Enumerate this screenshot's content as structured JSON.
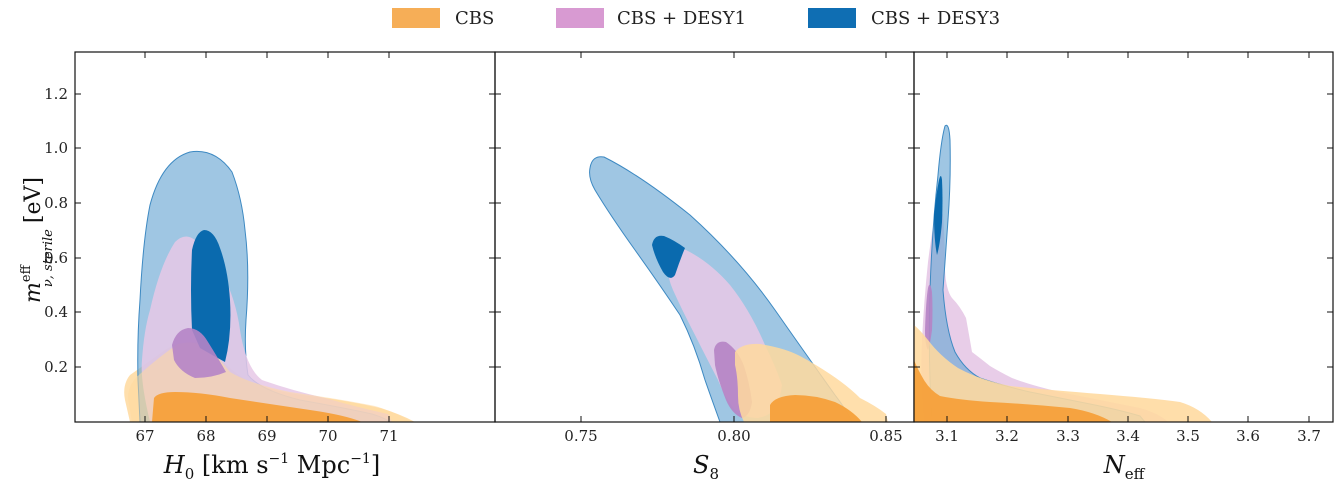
{
  "chart_data": {
    "type": "contour",
    "legend": {
      "placement": "top-center",
      "entries": [
        {
          "label": "CBS",
          "color": "#F5A03A"
        },
        {
          "label": "CBS + DESY1",
          "color": "#D89AD2"
        },
        {
          "label": "CBS + DESY3",
          "color": "#1F77B4"
        }
      ]
    },
    "ylabel": "m_{ν, sterile}^{eff} [eV]",
    "ylabel_parts": {
      "base": "m",
      "sup": "eff",
      "sub": "ν, sterile",
      "unit": "[eV]"
    },
    "ylim": [
      0,
      1.35
    ],
    "yticks": [
      "0.2",
      "0.4",
      "0.6",
      "0.8",
      "1.0",
      "1.2"
    ],
    "panels": [
      {
        "xlabel": "H0 [km s−1 Mpc−1]",
        "xlabel_parts": {
          "base": "H",
          "sub": "0",
          "rest1": " [km s",
          "sup1": "−1",
          "rest2": " Mpc",
          "sup2": "−1",
          "rest3": "]"
        },
        "xlim": [
          66.0,
          71.8
        ],
        "xticks": [
          "67",
          "68",
          "69",
          "70",
          "71"
        ],
        "series": [
          {
            "name": "CBS",
            "color": "#F5A03A",
            "contour_1sigma": [
              [
                67.1,
                0
              ],
              [
                67.1,
                0.1
              ],
              [
                67.5,
                0.12
              ],
              [
                68.0,
                0.1
              ],
              [
                69.0,
                0.07
              ],
              [
                70.0,
                0.03
              ],
              [
                70.4,
                0
              ]
            ],
            "contour_2sigma": [
              [
                66.7,
                0.02
              ],
              [
                66.7,
                0.12
              ],
              [
                67.0,
                0.25
              ],
              [
                67.4,
                0.3
              ],
              [
                68.0,
                0.28
              ],
              [
                68.5,
                0.15
              ],
              [
                69.5,
                0.1
              ],
              [
                70.5,
                0.05
              ],
              [
                71.0,
                0
              ]
            ]
          },
          {
            "name": "CBS + DESY1",
            "color": "#D89AD2",
            "contour_1sigma": [
              [
                67.4,
                0.2
              ],
              [
                67.6,
                0.33
              ],
              [
                67.9,
                0.3
              ],
              [
                68.2,
                0.2
              ]
            ],
            "contour_2sigma": [
              [
                66.9,
                0.18
              ],
              [
                67.0,
                0.4
              ],
              [
                67.4,
                0.63
              ],
              [
                67.7,
                0.68
              ],
              [
                68.0,
                0.55
              ],
              [
                68.5,
                0.25
              ],
              [
                69.5,
                0.1
              ],
              [
                70.5,
                0
              ]
            ]
          },
          {
            "name": "CBS + DESY3",
            "color": "#1F77B4",
            "contour_1sigma": [
              [
                67.6,
                0.4
              ],
              [
                67.7,
                0.62
              ],
              [
                67.9,
                0.69
              ],
              [
                68.2,
                0.6
              ],
              [
                68.1,
                0.35
              ]
            ],
            "contour_2sigma": [
              [
                66.9,
                0.2
              ],
              [
                67.0,
                0.75
              ],
              [
                67.4,
                0.97
              ],
              [
                67.8,
                0.99
              ],
              [
                68.2,
                0.8
              ],
              [
                68.5,
                0.2
              ],
              [
                70.3,
                0.03
              ],
              [
                70.6,
                0
              ]
            ]
          }
        ]
      },
      {
        "xlabel": "S8",
        "xlabel_parts": {
          "base": "S",
          "sub": "8"
        },
        "xlim": [
          0.7285,
          0.8555
        ],
        "xticks": [
          "0.75",
          "0.80",
          "0.85"
        ],
        "series": [
          {
            "name": "CBS",
            "color": "#F5A03A",
            "contour_1sigma": [
              [
                0.8,
                0
              ],
              [
                0.82,
                0.09
              ],
              [
                0.84,
                0.06
              ],
              [
                0.85,
                0
              ]
            ],
            "contour_2sigma": [
              [
                0.8,
                0.1
              ],
              [
                0.808,
                0.28
              ],
              [
                0.83,
                0.22
              ],
              [
                0.852,
                0.05
              ],
              [
                0.852,
                0
              ]
            ]
          },
          {
            "name": "CBS + DESY1",
            "color": "#D89AD2",
            "contour_1sigma": [
              [
                0.795,
                0.25
              ],
              [
                0.799,
                0.29
              ],
              [
                0.803,
                0.15
              ],
              [
                0.805,
                0.05
              ]
            ],
            "contour_2sigma": [
              [
                0.78,
                0.35
              ],
              [
                0.783,
                0.6
              ],
              [
                0.79,
                0.63
              ],
              [
                0.8,
                0.5
              ],
              [
                0.81,
                0.2
              ],
              [
                0.84,
                0.05
              ],
              [
                0.8,
                0.0
              ]
            ]
          },
          {
            "name": "CBS + DESY3",
            "color": "#1F77B4",
            "contour_1sigma": [
              [
                0.774,
                0.62
              ],
              [
                0.779,
                0.68
              ],
              [
                0.783,
                0.62
              ],
              [
                0.786,
                0.58
              ]
            ],
            "contour_2sigma": [
              [
                0.757,
                0.97
              ],
              [
                0.77,
                0.92
              ],
              [
                0.8,
                0.6
              ],
              [
                0.84,
                0.1
              ],
              [
                0.845,
                0.0
              ],
              [
                0.76,
                0.85
              ]
            ]
          }
        ]
      },
      {
        "xlabel": "Neff",
        "xlabel_parts": {
          "base": "N",
          "sub": "eff"
        },
        "xlim": [
          3.046,
          3.74
        ],
        "xticks": [
          "3.1",
          "3.2",
          "3.3",
          "3.4",
          "3.5",
          "3.6",
          "3.7"
        ],
        "series": [
          {
            "name": "CBS",
            "color": "#F5A03A",
            "contour_1sigma": [
              [
                3.046,
                0.2
              ],
              [
                3.06,
                0.08
              ],
              [
                3.2,
                0.05
              ],
              [
                3.35,
                0.03
              ],
              [
                3.4,
                0
              ]
            ],
            "contour_2sigma": [
              [
                3.046,
                0.35
              ],
              [
                3.08,
                0.18
              ],
              [
                3.2,
                0.1
              ],
              [
                3.35,
                0.1
              ],
              [
                3.48,
                0.07
              ],
              [
                3.54,
                0
              ]
            ]
          },
          {
            "name": "CBS + DESY1",
            "color": "#D89AD2",
            "contour_1sigma": [
              [
                3.06,
                0.5
              ],
              [
                3.07,
                0.52
              ],
              [
                3.075,
                0.3
              ],
              [
                3.07,
                0.2
              ]
            ],
            "contour_2sigma": [
              [
                3.055,
                0.25
              ],
              [
                3.07,
                0.77
              ],
              [
                3.085,
                0.7
              ],
              [
                3.1,
                0.4
              ],
              [
                3.2,
                0.2
              ],
              [
                3.35,
                0.1
              ],
              [
                3.45,
                0
              ]
            ]
          },
          {
            "name": "CBS + DESY3",
            "color": "#1F77B4",
            "contour_1sigma": [
              [
                3.085,
                0.78
              ],
              [
                3.092,
                0.91
              ],
              [
                3.097,
                0.8
              ],
              [
                3.093,
                0.55
              ]
            ],
            "contour_2sigma": [
              [
                3.07,
                0.8
              ],
              [
                3.095,
                1.08
              ],
              [
                3.105,
                1.0
              ],
              [
                3.1,
                0.6
              ],
              [
                3.2,
                0.15
              ],
              [
                3.4,
                0.05
              ],
              [
                3.45,
                0
              ]
            ]
          }
        ]
      }
    ],
    "grid": false
  }
}
